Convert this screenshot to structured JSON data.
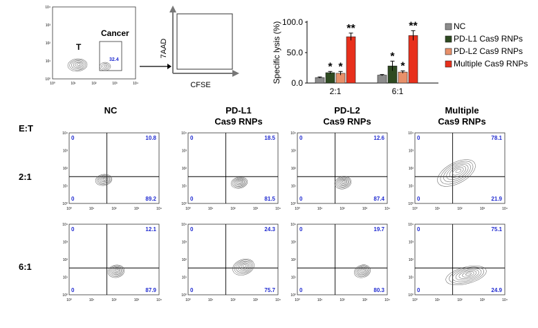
{
  "gating": {
    "t_label": "T",
    "cancer_label": "Cancer",
    "gate_value": "32.4",
    "y_axis": "7AAD",
    "x_axis": "CFSE",
    "ticks_x": [
      "10⁰",
      "10¹",
      "10²",
      "10³",
      "10⁴"
    ],
    "ticks_y": [
      "10⁰",
      "10¹",
      "10²",
      "10³",
      "10⁴"
    ]
  },
  "columns": [
    "NC",
    "PD-L1\nCas9 RNPs",
    "PD-L2\nCas9 RNPs",
    "Multiple\nCas9 RNPs"
  ],
  "et_label": "E:T",
  "rows": [
    "2:1",
    "6:1"
  ],
  "quadrant_values": [
    [
      {
        "ul": "0",
        "ur": "10.8",
        "ll": "0",
        "lr": "89.2"
      },
      {
        "ul": "0",
        "ur": "18.5",
        "ll": "0",
        "lr": "81.5"
      },
      {
        "ul": "0",
        "ur": "12.6",
        "ll": "0",
        "lr": "87.4"
      },
      {
        "ul": "0",
        "ur": "78.1",
        "ll": "0",
        "lr": "21.9"
      }
    ],
    [
      {
        "ul": "0",
        "ur": "12.1",
        "ll": "0",
        "lr": "87.9"
      },
      {
        "ul": "0",
        "ur": "24.3",
        "ll": "0",
        "lr": "75.7"
      },
      {
        "ul": "0",
        "ur": "19.7",
        "ll": "0",
        "lr": "80.3"
      },
      {
        "ul": "0",
        "ur": "75.1",
        "ll": "0",
        "lr": "24.9"
      }
    ]
  ],
  "chart_data": {
    "type": "bar",
    "ylabel": "Specific lysis (%)",
    "ylim": [
      0,
      100
    ],
    "yticks": [
      "0.0",
      "50.0",
      "100.0"
    ],
    "categories": [
      "2:1",
      "6:1"
    ],
    "series": [
      {
        "name": "NC",
        "color": "#8c8c8c",
        "values": [
          9,
          13
        ],
        "errors": [
          1,
          1
        ],
        "sig": [
          "",
          ""
        ]
      },
      {
        "name": "PD-L1 Cas9 RNPs",
        "color": "#2e4a21",
        "values": [
          17,
          28
        ],
        "errors": [
          2,
          8
        ],
        "sig": [
          "*",
          "*"
        ]
      },
      {
        "name": "PD-L2 Cas9 RNPs",
        "color": "#e8906a",
        "values": [
          16,
          18
        ],
        "errors": [
          3,
          2
        ],
        "sig": [
          "*",
          "*"
        ]
      },
      {
        "name": "Multiple Cas9 RNPs",
        "color": "#e8301c",
        "values": [
          76,
          78
        ],
        "errors": [
          6,
          8
        ],
        "sig": [
          "**",
          "**"
        ]
      }
    ]
  }
}
